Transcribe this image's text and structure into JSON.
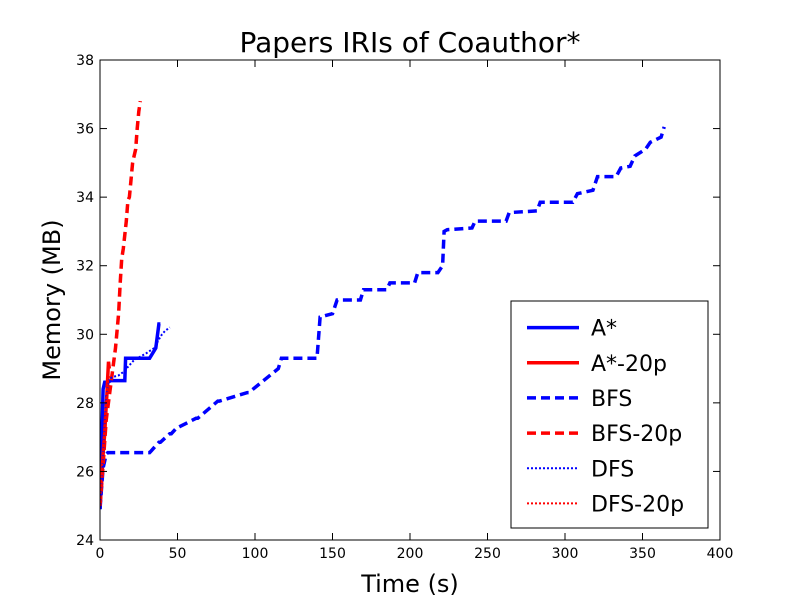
{
  "chart_data": {
    "type": "line",
    "title": "Papers IRIs of Coauthor*",
    "xlabel": "Time (s)",
    "ylabel": "Memory (MB)",
    "xlim": [
      0,
      400
    ],
    "ylim": [
      24,
      38
    ],
    "xticks": [
      0,
      50,
      100,
      150,
      200,
      250,
      300,
      350,
      400
    ],
    "yticks": [
      24,
      26,
      28,
      30,
      32,
      34,
      36,
      38
    ],
    "grid": false,
    "legend_position": "lower-right",
    "series": [
      {
        "name": "A*",
        "color": "#0000ff",
        "style": "solid",
        "x": [
          0,
          0.5,
          1,
          1.5,
          2,
          3,
          5,
          7,
          16,
          16.5,
          17,
          32,
          36,
          38,
          39
        ],
        "y": [
          24.9,
          25.5,
          26.3,
          27.5,
          28.4,
          28.6,
          28.6,
          28.65,
          28.65,
          29.3,
          29.3,
          29.3,
          29.6,
          30.3,
          30.3
        ]
      },
      {
        "name": "A*-20p",
        "color": "#ff0000",
        "style": "solid",
        "x": [
          0,
          1,
          1.5,
          2,
          2.5,
          3,
          3.5,
          4,
          4.5,
          5,
          5.5,
          6
        ],
        "y": [
          25.0,
          25.6,
          26.1,
          26.5,
          26.8,
          27.1,
          27.5,
          27.9,
          28.3,
          28.8,
          29.2,
          29.0
        ]
      },
      {
        "name": "BFS",
        "color": "#0000ff",
        "style": "dashed",
        "x": [
          0,
          1,
          2,
          4,
          5,
          32,
          33,
          38,
          39,
          45,
          46,
          50,
          51,
          62,
          63,
          76,
          77,
          95,
          96,
          115,
          117,
          140,
          142,
          150,
          153,
          168,
          170,
          185,
          187,
          203,
          205,
          218,
          221,
          222,
          224,
          240,
          242,
          262,
          264,
          282,
          284,
          305,
          308,
          318,
          321,
          333,
          336,
          342,
          345,
          352,
          355,
          362,
          364
        ],
        "y": [
          24.9,
          25.5,
          26.1,
          26.5,
          26.55,
          26.55,
          26.6,
          26.85,
          26.85,
          27.1,
          27.1,
          27.3,
          27.3,
          27.55,
          27.55,
          28.05,
          28.05,
          28.3,
          28.3,
          29.0,
          29.3,
          29.3,
          30.5,
          30.6,
          31.0,
          31.0,
          31.3,
          31.3,
          31.5,
          31.5,
          31.8,
          31.8,
          32.0,
          33.0,
          33.05,
          33.1,
          33.3,
          33.3,
          33.55,
          33.6,
          33.85,
          33.85,
          34.1,
          34.2,
          34.6,
          34.6,
          34.85,
          34.9,
          35.2,
          35.4,
          35.6,
          35.75,
          36.05
        ]
      },
      {
        "name": "BFS-20p",
        "color": "#ff0000",
        "style": "dashed",
        "x": [
          0,
          2,
          4,
          6,
          8,
          10,
          12,
          13,
          14,
          15,
          17,
          18,
          19,
          20,
          21,
          22,
          23,
          24,
          25,
          26
        ],
        "y": [
          25.0,
          26.2,
          27.5,
          28.2,
          28.9,
          29.6,
          30.6,
          31.5,
          32.2,
          32.5,
          33.3,
          33.9,
          34.0,
          34.5,
          35.0,
          35.2,
          35.4,
          36.0,
          36.5,
          36.8
        ]
      },
      {
        "name": "DFS",
        "color": "#0000ff",
        "style": "dotted",
        "x": [
          0,
          2,
          4,
          6,
          8,
          12,
          15,
          18,
          22,
          26,
          30,
          35,
          38,
          40,
          42,
          45
        ],
        "y": [
          24.9,
          26.5,
          28.2,
          28.7,
          28.75,
          28.8,
          28.9,
          29.05,
          29.25,
          29.35,
          29.45,
          29.6,
          29.85,
          30.0,
          30.1,
          30.2
        ]
      },
      {
        "name": "DFS-20p",
        "color": "#ff0000",
        "style": "dotted",
        "x": [
          0,
          1,
          2,
          3,
          4,
          5,
          6
        ],
        "y": [
          25.0,
          25.8,
          26.6,
          27.3,
          28.0,
          28.6,
          28.8
        ]
      }
    ]
  }
}
